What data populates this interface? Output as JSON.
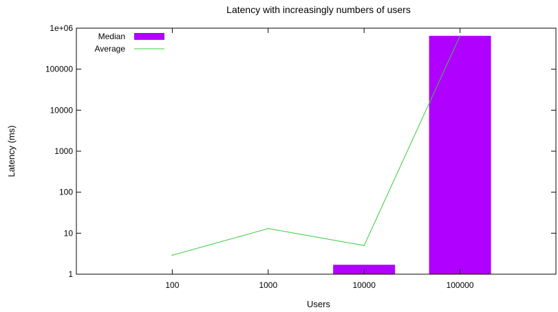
{
  "chart_data": {
    "type": "bar",
    "title": "Latency with increasingly numbers of users",
    "xlabel": "Users",
    "ylabel": "Latency (ms)",
    "categories": [
      "100",
      "1000",
      "10000",
      "100000"
    ],
    "yscale": "log",
    "ylim": [
      1,
      1000000
    ],
    "yticks": [
      1,
      10,
      100,
      1000,
      10000,
      100000,
      1000000
    ],
    "ytick_labels": [
      "1",
      "10",
      "100",
      "1000",
      "10000",
      "100000",
      "1e+06"
    ],
    "grid": false,
    "legend_position": "top-left",
    "series": [
      {
        "name": "Median",
        "type": "bar",
        "color": "#b000ff",
        "values": [
          null,
          null,
          1.7,
          650000
        ]
      },
      {
        "name": "Average",
        "type": "line",
        "color": "#33cc33",
        "values": [
          2.9,
          13,
          5,
          650000
        ]
      }
    ]
  }
}
